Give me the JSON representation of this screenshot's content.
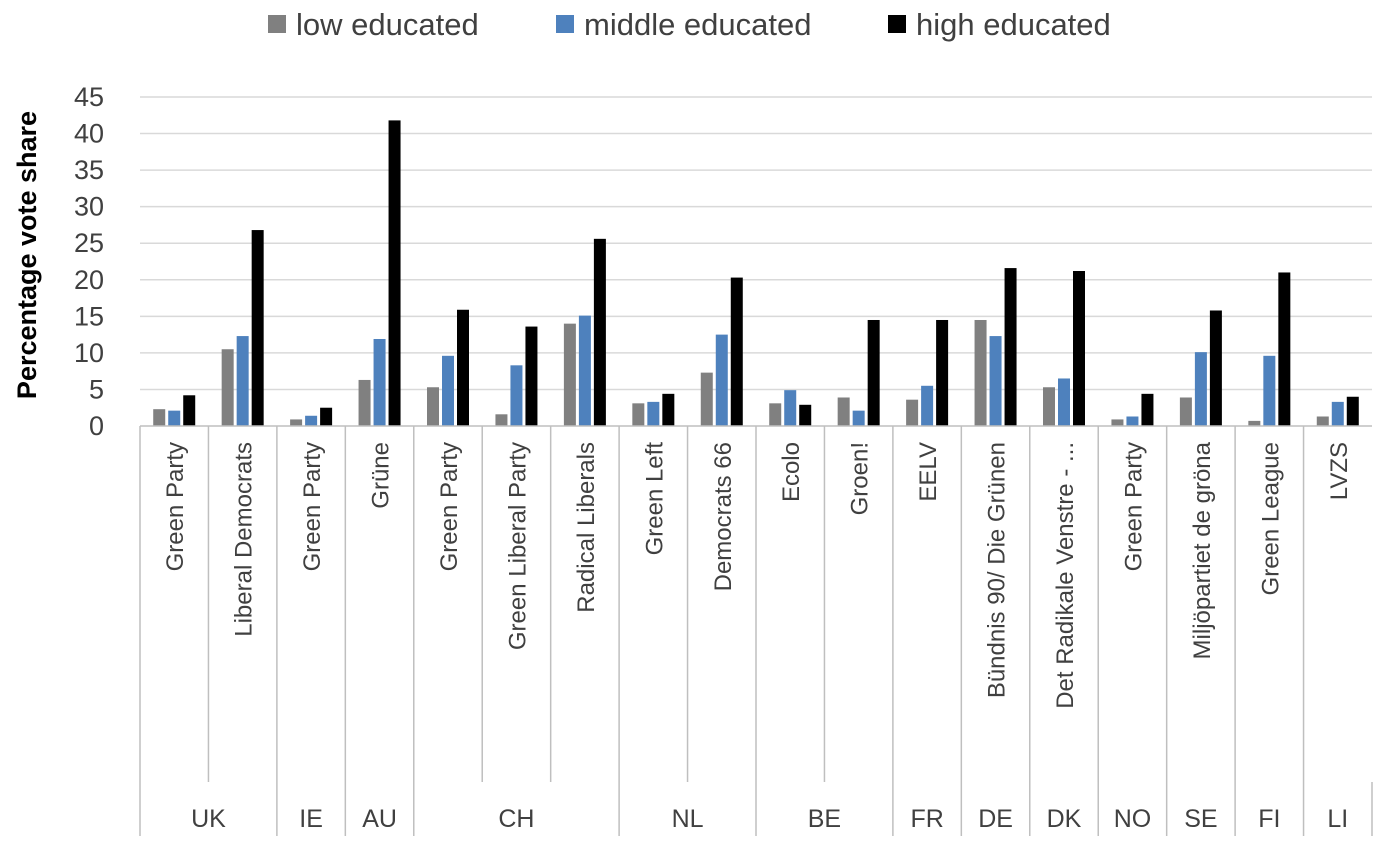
{
  "chart_data": {
    "type": "bar",
    "title": "",
    "xlabel": "",
    "ylabel": "Percentage vote share",
    "ylim": [
      0,
      45
    ],
    "yticks": [
      "0",
      "5",
      "10",
      "15",
      "20",
      "25",
      "30",
      "35",
      "40",
      "45"
    ],
    "grid": true,
    "legend_position": "top",
    "colors": {
      "low educated": "#808080",
      "middle educated": "#4e81bd",
      "high educated": "#000000"
    },
    "categories": [
      "Green Party",
      "Liberal Democrats",
      "Green Party",
      "Grüne",
      "Green Party",
      "Green Liberal Party",
      "Radical Liberals",
      "Green Left",
      "Democrats 66",
      "Ecolo",
      "Groen!",
      "EELV",
      "Bündnis 90/ Die Grünen",
      "Det Radikale Venstre - ...",
      "Green Party",
      "Miljöpartiet de gröna",
      "Green League",
      "LVZS"
    ],
    "groups": [
      {
        "label": "UK",
        "count": 2
      },
      {
        "label": "IE",
        "count": 1
      },
      {
        "label": "AU",
        "count": 1
      },
      {
        "label": "CH",
        "count": 3
      },
      {
        "label": "NL",
        "count": 2
      },
      {
        "label": "BE",
        "count": 2
      },
      {
        "label": "FR",
        "count": 1
      },
      {
        "label": "DE",
        "count": 1
      },
      {
        "label": "DK",
        "count": 1
      },
      {
        "label": "NO",
        "count": 1
      },
      {
        "label": "SE",
        "count": 1
      },
      {
        "label": "FI",
        "count": 1
      },
      {
        "label": "LI",
        "count": 1
      }
    ],
    "series": [
      {
        "name": "low educated",
        "values": [
          2.3,
          10.5,
          0.9,
          6.3,
          5.3,
          1.6,
          14.0,
          3.1,
          7.3,
          3.1,
          3.9,
          3.6,
          14.5,
          5.3,
          0.9,
          3.9,
          0.7,
          1.3
        ]
      },
      {
        "name": "middle educated",
        "values": [
          2.1,
          12.3,
          1.4,
          11.9,
          9.6,
          8.3,
          15.1,
          3.3,
          12.5,
          4.9,
          2.1,
          5.5,
          12.3,
          6.5,
          1.3,
          10.1,
          9.6,
          3.3
        ]
      },
      {
        "name": "high educated",
        "values": [
          4.2,
          26.8,
          2.5,
          41.8,
          15.9,
          13.6,
          25.6,
          4.4,
          20.3,
          2.9,
          14.5,
          14.5,
          21.6,
          21.2,
          4.4,
          15.8,
          21.0,
          4.0
        ]
      }
    ]
  }
}
